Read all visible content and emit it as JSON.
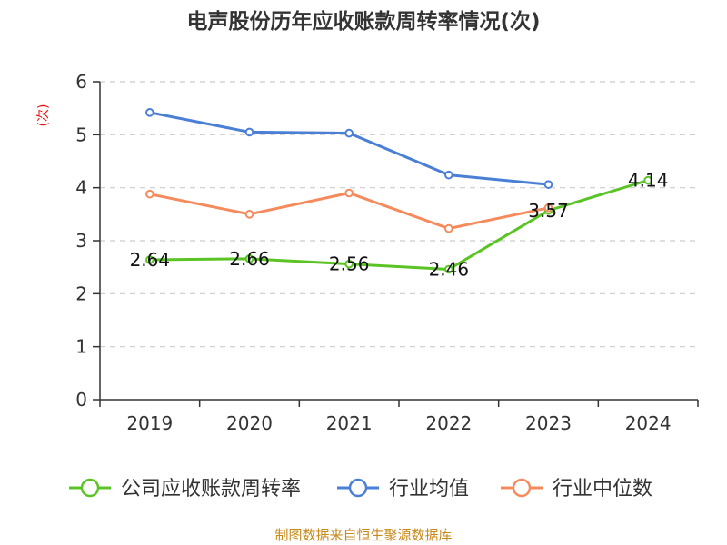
{
  "title": "电声股份历年应收账款周转率情况(次)",
  "source": "制图数据来自恒生聚源数据库",
  "chart_data": {
    "type": "line",
    "title": "电声股份历年应收账款周转率情况(次)",
    "ylabel": "(次)",
    "xlabel": "",
    "categories": [
      "2019",
      "2020",
      "2021",
      "2022",
      "2023",
      "2024"
    ],
    "ylim": [
      0,
      6
    ],
    "yticks": [
      0,
      1,
      2,
      3,
      4,
      5,
      6
    ],
    "grid": true,
    "legend_position": "bottom",
    "series": [
      {
        "name": "公司应收账款周转率",
        "color": "#5bc425",
        "values": [
          2.64,
          2.66,
          2.56,
          2.46,
          3.57,
          4.14
        ],
        "labels": [
          "2.64",
          "2.66",
          "2.56",
          "2.46",
          "3.57",
          "4.14"
        ]
      },
      {
        "name": "行业均值",
        "color": "#4a7fd6",
        "values": [
          5.42,
          5.05,
          5.03,
          4.24,
          4.06,
          null
        ]
      },
      {
        "name": "行业中位数",
        "color": "#f58b5c",
        "values": [
          3.88,
          3.5,
          3.9,
          3.23,
          3.62,
          null
        ]
      }
    ]
  }
}
